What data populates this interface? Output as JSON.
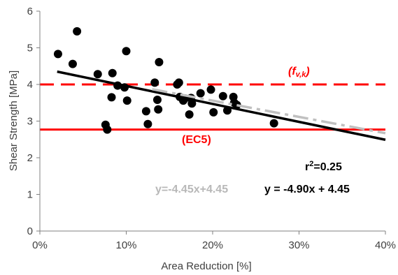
{
  "chart_data": {
    "type": "scatter",
    "xlabel": "Area Reduction [%]",
    "ylabel": "Shear Strength [MPa]",
    "xlim": [
      0,
      40
    ],
    "ylim": [
      0,
      6
    ],
    "x_ticks": [
      "0%",
      "10%",
      "20%",
      "30%",
      "40%"
    ],
    "y_ticks": [
      "0",
      "1",
      "2",
      "3",
      "4",
      "5",
      "6"
    ],
    "x_tick_values": [
      0,
      10,
      20,
      30,
      40
    ],
    "y_tick_values": [
      0,
      1,
      2,
      3,
      4,
      5,
      6
    ],
    "grid": false,
    "points": [
      {
        "x": 2.1,
        "y": 4.83
      },
      {
        "x": 3.8,
        "y": 4.56
      },
      {
        "x": 4.3,
        "y": 5.45
      },
      {
        "x": 6.7,
        "y": 4.28
      },
      {
        "x": 7.6,
        "y": 2.9
      },
      {
        "x": 7.8,
        "y": 2.77
      },
      {
        "x": 8.3,
        "y": 3.65
      },
      {
        "x": 8.4,
        "y": 4.31
      },
      {
        "x": 9.0,
        "y": 3.97
      },
      {
        "x": 9.8,
        "y": 3.92
      },
      {
        "x": 10.0,
        "y": 4.91
      },
      {
        "x": 10.1,
        "y": 3.56
      },
      {
        "x": 12.3,
        "y": 3.27
      },
      {
        "x": 12.5,
        "y": 2.92
      },
      {
        "x": 13.3,
        "y": 4.05
      },
      {
        "x": 13.6,
        "y": 3.58
      },
      {
        "x": 13.7,
        "y": 3.32
      },
      {
        "x": 13.8,
        "y": 4.61
      },
      {
        "x": 15.9,
        "y": 4.0
      },
      {
        "x": 16.1,
        "y": 4.05
      },
      {
        "x": 16.2,
        "y": 3.66
      },
      {
        "x": 16.6,
        "y": 3.56
      },
      {
        "x": 16.8,
        "y": 3.62
      },
      {
        "x": 17.3,
        "y": 3.18
      },
      {
        "x": 17.5,
        "y": 3.63
      },
      {
        "x": 17.6,
        "y": 3.48
      },
      {
        "x": 18.6,
        "y": 3.76
      },
      {
        "x": 19.8,
        "y": 3.86
      },
      {
        "x": 20.1,
        "y": 3.24
      },
      {
        "x": 21.2,
        "y": 3.68
      },
      {
        "x": 21.7,
        "y": 3.29
      },
      {
        "x": 22.4,
        "y": 3.66
      },
      {
        "x": 22.5,
        "y": 3.5
      },
      {
        "x": 22.8,
        "y": 3.44
      },
      {
        "x": 27.1,
        "y": 2.94
      }
    ],
    "fits": [
      {
        "x": [
          2,
          40
        ],
        "y": [
          4.35,
          2.49
        ],
        "style": "solid",
        "color": "#000000"
      },
      {
        "x": [
          13,
          40
        ],
        "y": [
          3.87,
          2.67
        ],
        "style": "dashdot",
        "color": "#c0c0c0"
      }
    ],
    "reference_lines": [
      {
        "y": 4.0,
        "style": "dashed",
        "color": "#ff0000"
      },
      {
        "y": 2.77,
        "style": "solid",
        "color": "#ff0000"
      }
    ],
    "annotations": {
      "fvk_prefix": "(f",
      "fvk_sub": "v,k",
      "fvk_suffix": ")",
      "ec5": "(EC5)",
      "r2_prefix": "r",
      "r2_sup": "2",
      "r2_value": "=0.25",
      "eq_black": "y = -4.90x + 4.45",
      "eq_gray": "y=-4.45x+4.45"
    }
  }
}
